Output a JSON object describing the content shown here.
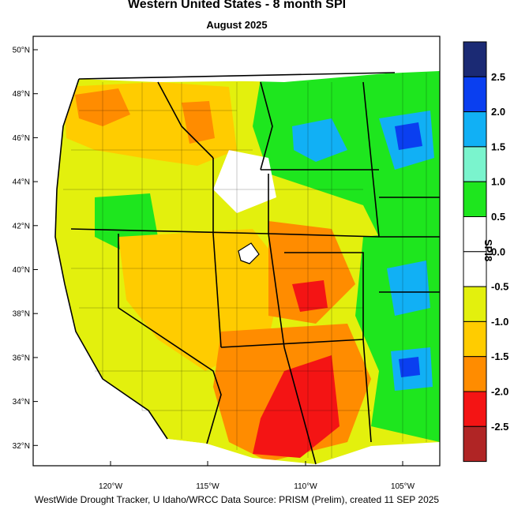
{
  "map": {
    "title": "Western United States - 8 month SPI",
    "subtitle": "August 2025",
    "footer": "WestWide Drought Tracker, U Idaho/WRCC Data Source: PRISM (Prelim), created 11 SEP 2025",
    "lat_labels": [
      "50°N",
      "48°N",
      "46°N",
      "44°N",
      "42°N",
      "40°N",
      "38°N",
      "36°N",
      "34°N",
      "32°N"
    ],
    "lon_labels": [
      "120°W",
      "115°W",
      "110°W",
      "105°W"
    ]
  },
  "colorbar": {
    "title": "SPI8",
    "colors": [
      "#1b2a74",
      "#0a3ff0",
      "#11b0f5",
      "#7af4cd",
      "#1ee61e",
      "#ffffff",
      "#ffffff",
      "#e3f00d",
      "#ffcc00",
      "#ff8c00",
      "#f41414",
      "#b02525"
    ],
    "labels": [
      "2.5",
      "2.0",
      "1.5",
      "1.0",
      "0.5",
      "0.0",
      "-0.5",
      "-1.0",
      "-1.5",
      "-2.0",
      "-2.5"
    ]
  },
  "regions": {
    "pacific_northwest": "dry",
    "northern_rockies_plains": "wet",
    "great_basin": "dry",
    "four_corners": "very-dry",
    "southern_plains": "wet",
    "california_coast": "moderately-dry"
  },
  "colors": {
    "dry": "#ffcc00",
    "moderately_dry": "#e3f00d",
    "very_dry": "#ff8c00",
    "extreme_dry": "#f41414",
    "wet": "#1ee61e",
    "very_wet": "#11b0f5",
    "wettest": "#0a3ff0",
    "normal": "#ffffff",
    "ocean": "#ffffff"
  }
}
